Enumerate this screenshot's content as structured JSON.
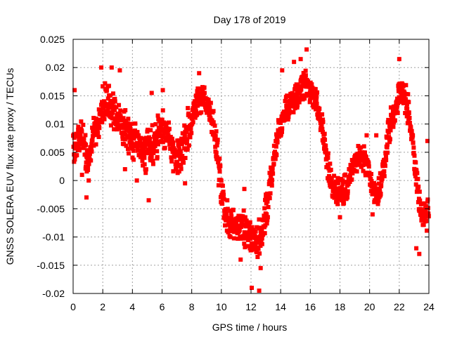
{
  "chart_data": {
    "type": "scatter",
    "title": "Day 178 of 2019",
    "xlabel": "GPS time / hours",
    "ylabel": "GNSS SOLERA EUV flux rate proxy / TECUs",
    "xlim": [
      0,
      24
    ],
    "ylim": [
      -0.02,
      0.025
    ],
    "x_ticks": [
      0,
      2,
      4,
      6,
      8,
      10,
      12,
      14,
      16,
      18,
      20,
      22,
      24
    ],
    "y_ticks": [
      -0.02,
      -0.015,
      -0.01,
      -0.005,
      0,
      0.005,
      0.01,
      0.015,
      0.02,
      0.025
    ],
    "x_tick_labels": [
      "0",
      "2",
      "4",
      "6",
      "8",
      "10",
      "12",
      "14",
      "16",
      "18",
      "20",
      "22",
      "24"
    ],
    "y_tick_labels": [
      "-0.02",
      "-0.015",
      "-0.01",
      "-0.005",
      "0",
      "0.005",
      "0.01",
      "0.015",
      "0.02",
      "0.025"
    ],
    "grid": true,
    "legend": "none",
    "marker": "square",
    "series": [
      {
        "name": "EUV flux rate proxy",
        "color": "#ff0000",
        "x": [
          0.0,
          0.25,
          0.5,
          0.75,
          1.0,
          1.25,
          1.5,
          1.75,
          2.0,
          2.25,
          2.5,
          2.75,
          3.0,
          3.25,
          3.5,
          3.75,
          4.0,
          4.25,
          4.5,
          4.75,
          5.0,
          5.25,
          5.5,
          5.75,
          6.0,
          6.25,
          6.5,
          6.75,
          7.0,
          7.25,
          7.5,
          7.75,
          8.0,
          8.25,
          8.5,
          8.75,
          9.0,
          9.25,
          9.5,
          9.75,
          10.0,
          10.25,
          10.5,
          10.75,
          11.0,
          11.25,
          11.5,
          11.75,
          12.0,
          12.25,
          12.5,
          12.75,
          13.0,
          13.25,
          13.5,
          13.75,
          14.0,
          14.25,
          14.5,
          14.75,
          15.0,
          15.25,
          15.5,
          15.75,
          16.0,
          16.25,
          16.5,
          16.75,
          17.0,
          17.25,
          17.5,
          17.75,
          18.0,
          18.25,
          18.5,
          18.75,
          19.0,
          19.25,
          19.5,
          19.75,
          20.0,
          20.25,
          20.5,
          20.75,
          21.0,
          21.25,
          21.5,
          21.75,
          22.0,
          22.25,
          22.5,
          22.75,
          23.0,
          23.25,
          23.5,
          23.75,
          24.0
        ],
        "y": [
          0.005,
          0.007,
          0.008,
          0.006,
          0.004,
          0.006,
          0.009,
          0.011,
          0.013,
          0.014,
          0.013,
          0.012,
          0.011,
          0.01,
          0.009,
          0.008,
          0.007,
          0.007,
          0.006,
          0.005,
          0.005,
          0.006,
          0.007,
          0.008,
          0.009,
          0.009,
          0.008,
          0.005,
          0.004,
          0.005,
          0.007,
          0.009,
          0.011,
          0.013,
          0.014,
          0.015,
          0.014,
          0.012,
          0.009,
          0.004,
          -0.002,
          -0.006,
          -0.008,
          -0.008,
          -0.008,
          -0.008,
          -0.009,
          -0.01,
          -0.01,
          -0.011,
          -0.011,
          -0.009,
          -0.006,
          -0.002,
          0.003,
          0.007,
          0.01,
          0.012,
          0.013,
          0.014,
          0.015,
          0.016,
          0.017,
          0.017,
          0.016,
          0.015,
          0.013,
          0.01,
          0.006,
          0.002,
          -0.001,
          -0.002,
          -0.002,
          -0.002,
          -0.001,
          0.001,
          0.003,
          0.004,
          0.004,
          0.003,
          0.0,
          -0.002,
          -0.003,
          -0.001,
          0.003,
          0.008,
          0.011,
          0.013,
          0.015,
          0.016,
          0.014,
          0.01,
          0.004,
          -0.002,
          -0.006,
          -0.007,
          -0.005
        ],
        "spread": [
          0.004,
          0.004,
          0.004,
          0.004,
          0.004,
          0.004,
          0.004,
          0.004,
          0.004,
          0.004,
          0.004,
          0.004,
          0.004,
          0.004,
          0.004,
          0.004,
          0.004,
          0.004,
          0.004,
          0.004,
          0.004,
          0.004,
          0.004,
          0.004,
          0.004,
          0.004,
          0.004,
          0.004,
          0.004,
          0.004,
          0.004,
          0.004,
          0.004,
          0.003,
          0.003,
          0.003,
          0.003,
          0.003,
          0.004,
          0.004,
          0.004,
          0.003,
          0.003,
          0.003,
          0.003,
          0.003,
          0.004,
          0.004,
          0.004,
          0.004,
          0.004,
          0.004,
          0.004,
          0.004,
          0.003,
          0.003,
          0.003,
          0.003,
          0.003,
          0.003,
          0.003,
          0.003,
          0.003,
          0.003,
          0.003,
          0.003,
          0.003,
          0.003,
          0.003,
          0.003,
          0.003,
          0.003,
          0.003,
          0.003,
          0.003,
          0.003,
          0.003,
          0.003,
          0.003,
          0.003,
          0.003,
          0.003,
          0.003,
          0.003,
          0.003,
          0.003,
          0.003,
          0.003,
          0.003,
          0.003,
          0.003,
          0.003,
          0.003,
          0.003,
          0.003,
          0.003,
          0.003
        ],
        "points_per_sample": 16,
        "outliers": [
          {
            "x": 0.1,
            "y": 0.016
          },
          {
            "x": 0.6,
            "y": 0.001
          },
          {
            "x": 0.9,
            "y": -0.003
          },
          {
            "x": 1.05,
            "y": 0.0
          },
          {
            "x": 1.9,
            "y": 0.02
          },
          {
            "x": 2.6,
            "y": 0.02
          },
          {
            "x": 3.15,
            "y": 0.0195
          },
          {
            "x": 3.5,
            "y": 0.002
          },
          {
            "x": 4.3,
            "y": 0.0
          },
          {
            "x": 5.1,
            "y": -0.0035
          },
          {
            "x": 5.3,
            "y": 0.0155
          },
          {
            "x": 6.05,
            "y": 0.016
          },
          {
            "x": 7.55,
            "y": -0.0005
          },
          {
            "x": 8.5,
            "y": 0.019
          },
          {
            "x": 10.4,
            "y": -0.0035
          },
          {
            "x": 11.3,
            "y": -0.014
          },
          {
            "x": 11.55,
            "y": -0.0015
          },
          {
            "x": 12.05,
            "y": -0.019
          },
          {
            "x": 12.55,
            "y": -0.0195
          },
          {
            "x": 12.65,
            "y": -0.0155
          },
          {
            "x": 13.0,
            "y": -0.0025
          },
          {
            "x": 14.1,
            "y": 0.0195
          },
          {
            "x": 14.9,
            "y": 0.021
          },
          {
            "x": 15.35,
            "y": 0.0215
          },
          {
            "x": 15.75,
            "y": 0.0232
          },
          {
            "x": 18.0,
            "y": -0.0065
          },
          {
            "x": 19.8,
            "y": 0.008
          },
          {
            "x": 20.2,
            "y": -0.006
          },
          {
            "x": 20.45,
            "y": 0.008
          },
          {
            "x": 21.6,
            "y": 0.0095
          },
          {
            "x": 22.0,
            "y": 0.0215
          },
          {
            "x": 23.15,
            "y": -0.012
          },
          {
            "x": 23.35,
            "y": -0.013
          },
          {
            "x": 23.9,
            "y": 0.007
          }
        ]
      }
    ]
  }
}
